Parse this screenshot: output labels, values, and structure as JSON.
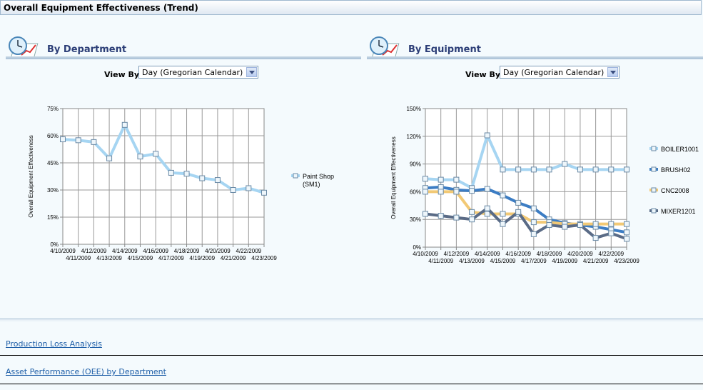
{
  "window": {
    "title": "Overall Equipment Effectiveness (Trend)"
  },
  "left_panel": {
    "title": "By Department",
    "view_by_label": "View By",
    "view_by_value": "Day (Gregorian Calendar)"
  },
  "right_panel": {
    "title": "By Equipment",
    "view_by_label": "View By",
    "view_by_value": "Day (Gregorian Calendar)"
  },
  "links": {
    "production_loss": "Production Loss Analysis",
    "asset_performance": "Asset Performance (OEE) by Department"
  },
  "chart_data": [
    {
      "type": "line",
      "ylabel": "Overall Equipment Effectiveness",
      "ylim": [
        0,
        75
      ],
      "yticks": [
        "0%",
        "15%",
        "30%",
        "45%",
        "60%",
        "75%"
      ],
      "categories": [
        "4/10/2009",
        "4/11/2009",
        "4/12/2009",
        "4/13/2009",
        "4/14/2009",
        "4/15/2009",
        "4/16/2009",
        "4/17/2009",
        "4/18/2009",
        "4/19/2009",
        "4/20/2009",
        "4/21/2009",
        "4/22/2009",
        "4/23/2009"
      ],
      "grid": true,
      "legend": "right",
      "series": [
        {
          "name": "Paint Shop (SM1)",
          "color": "#a6d5f2",
          "values": [
            58,
            57.5,
            56.5,
            47.5,
            66,
            48.5,
            50,
            39.5,
            39,
            36.5,
            35.5,
            30,
            31,
            28.5
          ]
        }
      ]
    },
    {
      "type": "line",
      "ylabel": "Overall Equipment Effectiveness",
      "ylim": [
        0,
        150
      ],
      "yticks": [
        "0%",
        "30%",
        "60%",
        "90%",
        "120%",
        "150%"
      ],
      "categories": [
        "4/10/2009",
        "4/11/2009",
        "4/12/2009",
        "4/13/2009",
        "4/14/2009",
        "4/15/2009",
        "4/16/2009",
        "4/17/2009",
        "4/18/2009",
        "4/19/2009",
        "4/20/2009",
        "4/21/2009",
        "4/22/2009",
        "4/23/2009"
      ],
      "grid": true,
      "legend": "right",
      "series": [
        {
          "name": "BOILER1001",
          "color": "#a6d5f2",
          "values": [
            74,
            73,
            73,
            64,
            121,
            84,
            84,
            84,
            84,
            90,
            84,
            84,
            84,
            84
          ]
        },
        {
          "name": "BRUSH02",
          "color": "#3c7dc4",
          "values": [
            64,
            65,
            62,
            61,
            63,
            56,
            48,
            42,
            30,
            26,
            24,
            22,
            19,
            16
          ]
        },
        {
          "name": "CNC2008",
          "color": "#f2c975",
          "values": [
            60,
            60,
            60,
            38,
            36,
            36,
            36,
            27,
            27,
            25,
            25,
            25,
            25,
            25
          ]
        },
        {
          "name": "MIXER1201",
          "color": "#5a6b86",
          "values": [
            36,
            34,
            32,
            30,
            42,
            25,
            38,
            14,
            24,
            22,
            24,
            10,
            15,
            9
          ]
        }
      ]
    }
  ]
}
